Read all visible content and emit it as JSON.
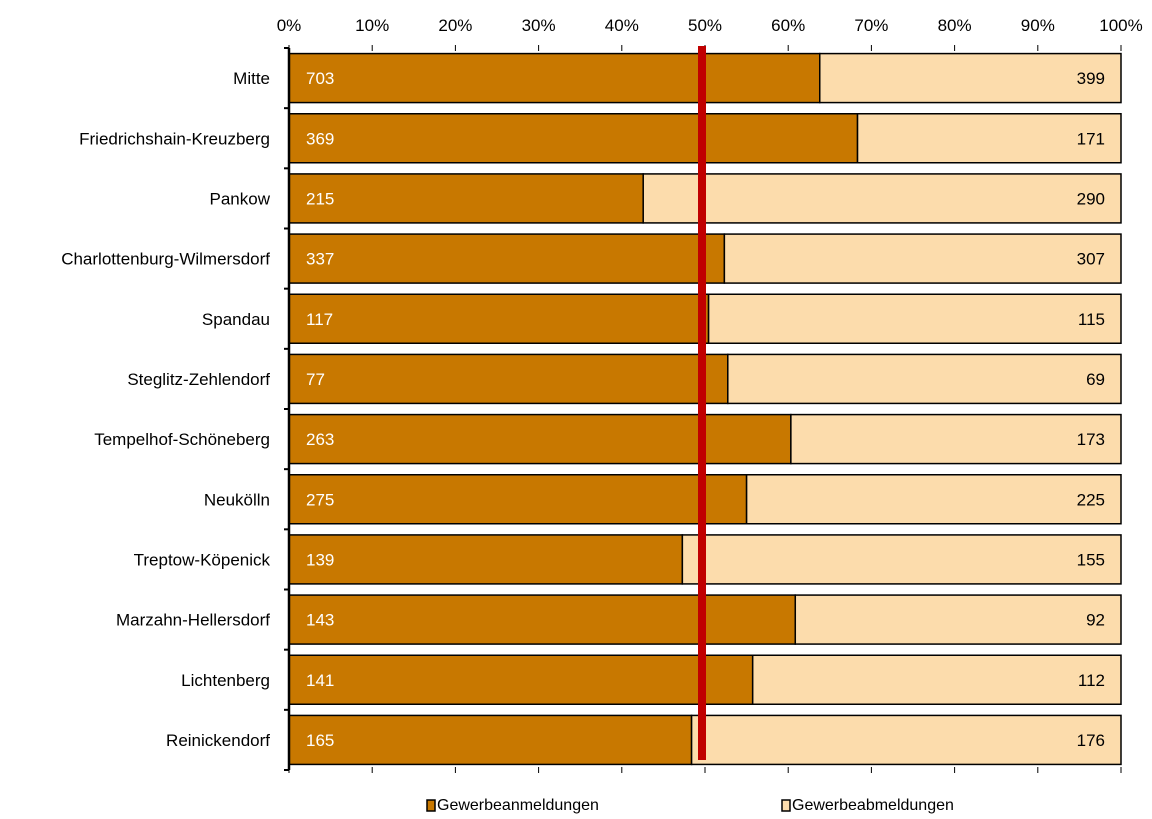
{
  "chart_data": {
    "type": "bar",
    "orientation": "horizontal",
    "stacking": "percent",
    "categories": [
      "Mitte",
      "Friedrichshain-Kreuzberg",
      "Pankow",
      "Charlottenburg-Wilmersdorf",
      "Spandau",
      "Steglitz-Zehlendorf",
      "Tempelhof-Schöneberg",
      "Neukölln",
      "Treptow-Köpenick",
      "Marzahn-Hellersdorf",
      "Lichtenberg",
      "Reinickendorf"
    ],
    "series": [
      {
        "name": "Gewerbeanmeldungen",
        "color": "#c87800",
        "values": [
          703,
          369,
          215,
          337,
          117,
          77,
          263,
          275,
          139,
          143,
          141,
          165
        ]
      },
      {
        "name": "Gewerbeabmeldungen",
        "color": "#fcdcac",
        "values": [
          399,
          171,
          290,
          307,
          115,
          69,
          173,
          225,
          155,
          92,
          112,
          176
        ]
      }
    ],
    "x_ticks": [
      "0%",
      "10%",
      "20%",
      "30%",
      "40%",
      "50%",
      "60%",
      "70%",
      "80%",
      "90%",
      "100%"
    ],
    "xlim": [
      0,
      100
    ],
    "x_axis_position": "top",
    "reference_line": {
      "value": 50,
      "color": "#c00000"
    },
    "legend_position": "bottom",
    "grid": false
  }
}
